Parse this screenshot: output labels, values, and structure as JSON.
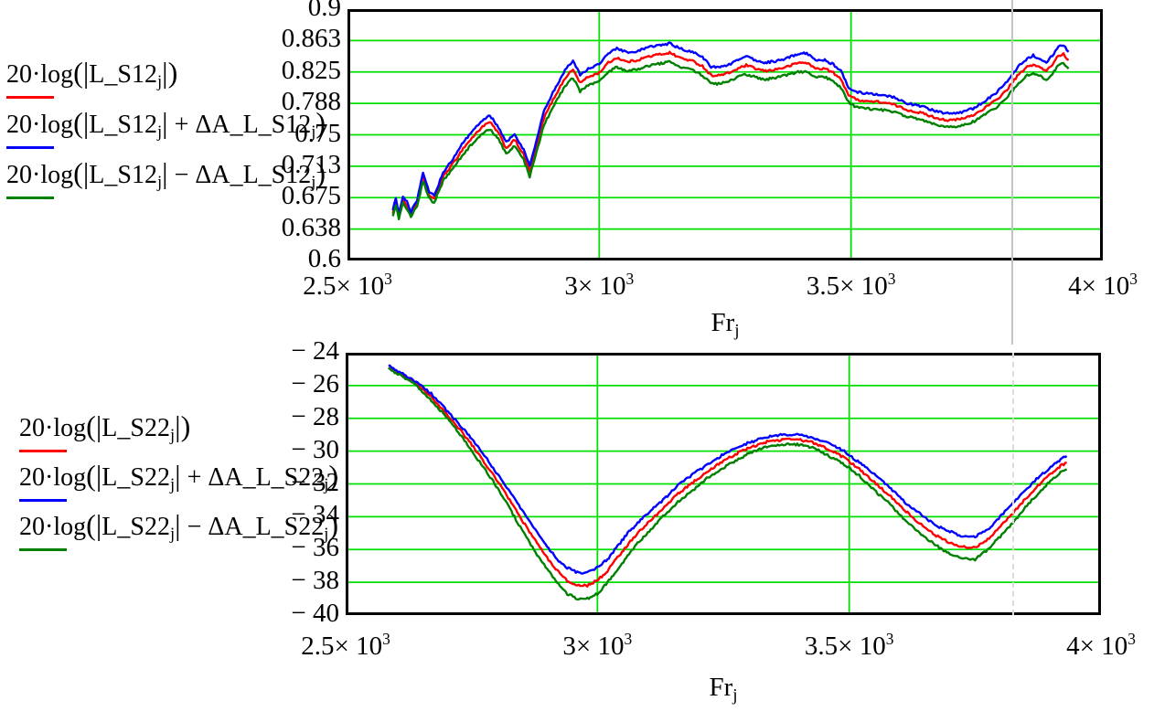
{
  "page": {
    "background": "#ffffff"
  },
  "page_margin_line": {
    "color": "#c3c3c3",
    "dashed_color": "#dcdcdc"
  },
  "colors": {
    "trace_red": "#ff0000",
    "trace_blue": "#0000ff",
    "trace_green": "#008000",
    "grid": "#00e000",
    "frame": "#000000"
  },
  "legends": [
    {
      "id": "s12-legend",
      "entries": [
        {
          "color": "#ff0000",
          "segments": [
            {
              "t": "20·log"
            },
            {
              "t": "(",
              "big": true
            },
            {
              "t": "|",
              "big": true
            },
            {
              "t": "L_S12"
            },
            {
              "t": "j",
              "sub": true
            },
            {
              "t": "|",
              "big": true
            },
            {
              "t": ")",
              "big": true
            }
          ]
        },
        {
          "color": "#0000ff",
          "segments": [
            {
              "t": "20·log"
            },
            {
              "t": "(",
              "big": true
            },
            {
              "t": "|",
              "big": true
            },
            {
              "t": "L_S12"
            },
            {
              "t": "j",
              "sub": true
            },
            {
              "t": "|",
              "big": true
            },
            {
              "t": " + ΔA_L_S12"
            },
            {
              "t": "j",
              "sub": true
            },
            {
              "t": ")",
              "big": true
            }
          ]
        },
        {
          "color": "#008000",
          "segments": [
            {
              "t": "20·log"
            },
            {
              "t": "(",
              "big": true
            },
            {
              "t": "|",
              "big": true
            },
            {
              "t": "L_S12"
            },
            {
              "t": "j",
              "sub": true
            },
            {
              "t": "|",
              "big": true
            },
            {
              "t": " − ΔA_L_S12"
            },
            {
              "t": "j",
              "sub": true
            },
            {
              "t": ")",
              "big": true
            }
          ]
        }
      ]
    },
    {
      "id": "s22-legend",
      "entries": [
        {
          "color": "#ff0000",
          "segments": [
            {
              "t": "20·log"
            },
            {
              "t": "(",
              "big": true
            },
            {
              "t": "|",
              "big": true
            },
            {
              "t": "L_S22"
            },
            {
              "t": "j",
              "sub": true
            },
            {
              "t": "|",
              "big": true
            },
            {
              "t": ")",
              "big": true
            }
          ]
        },
        {
          "color": "#0000ff",
          "segments": [
            {
              "t": "20·log"
            },
            {
              "t": "(",
              "big": true
            },
            {
              "t": "|",
              "big": true
            },
            {
              "t": "L_S22"
            },
            {
              "t": "j",
              "sub": true
            },
            {
              "t": "|",
              "big": true
            },
            {
              "t": " + ΔA_L_S22"
            },
            {
              "t": "j",
              "sub": true
            },
            {
              "t": ")",
              "big": true
            }
          ]
        },
        {
          "color": "#008000",
          "segments": [
            {
              "t": "20·log"
            },
            {
              "t": "(",
              "big": true
            },
            {
              "t": "|",
              "big": true
            },
            {
              "t": "L_S22"
            },
            {
              "t": "j",
              "sub": true
            },
            {
              "t": "|",
              "big": true
            },
            {
              "t": " − ΔA_L_S22"
            },
            {
              "t": "j",
              "sub": true
            },
            {
              "t": ")",
              "big": true
            }
          ]
        }
      ]
    }
  ],
  "chart_data": [
    {
      "id": "S12",
      "type": "line",
      "grid": true,
      "grid_color": "#00e000",
      "frame_color": "#000000",
      "legend_position": "left",
      "xlabel_segments": [
        {
          "t": "Fr"
        },
        {
          "t": "j",
          "sub": true
        }
      ],
      "x_range": [
        2500,
        4000
      ],
      "y_range": [
        0.6,
        0.9
      ],
      "noise": 0.0013,
      "x_ticks": [
        {
          "value": 2500,
          "segments": [
            {
              "t": "2.5× 10"
            },
            {
              "t": "3",
              "sup": true
            }
          ]
        },
        {
          "value": 3000,
          "segments": [
            {
              "t": "3× 10"
            },
            {
              "t": "3",
              "sup": true
            }
          ]
        },
        {
          "value": 3500,
          "segments": [
            {
              "t": "3.5× 10"
            },
            {
              "t": "3",
              "sup": true
            }
          ]
        },
        {
          "value": 4000,
          "segments": [
            {
              "t": "4× 10"
            },
            {
              "t": "3",
              "sup": true
            }
          ]
        }
      ],
      "y_ticks": [
        {
          "value": 0.9,
          "label": "0.9"
        },
        {
          "value": 0.8625,
          "label": "0.863"
        },
        {
          "value": 0.825,
          "label": "0.825"
        },
        {
          "value": 0.7875,
          "label": "0.788"
        },
        {
          "value": 0.75,
          "label": "0.75"
        },
        {
          "value": 0.7125,
          "label": "0.713"
        },
        {
          "value": 0.675,
          "label": "0.675"
        },
        {
          "value": 0.6375,
          "label": "0.638"
        },
        {
          "value": 0.6,
          "label": "0.6"
        }
      ],
      "x": [
        2590,
        2596,
        2602,
        2610,
        2618,
        2626,
        2638,
        2650,
        2662,
        2672,
        2690,
        2710,
        2730,
        2750,
        2768,
        2783,
        2800,
        2815,
        2832,
        2850,
        2862,
        2875,
        2890,
        2905,
        2920,
        2935,
        2948,
        2962,
        2978,
        3000,
        3018,
        3035,
        3055,
        3075,
        3095,
        3120,
        3140,
        3160,
        3185,
        3205,
        3222,
        3240,
        3258,
        3276,
        3292,
        3310,
        3330,
        3350,
        3372,
        3395,
        3412,
        3430,
        3448,
        3465,
        3480,
        3495,
        3510,
        3535,
        3560,
        3585,
        3610,
        3640,
        3670,
        3695,
        3720,
        3745,
        3770,
        3790,
        3810,
        3830,
        3850,
        3862,
        3876,
        3888,
        3900,
        3912,
        3922,
        3932
      ],
      "series": [
        {
          "name": "20·log(|L_S12j|)",
          "color": "#ff0000",
          "values": [
            0.657,
            0.67,
            0.653,
            0.673,
            0.666,
            0.655,
            0.668,
            0.7,
            0.678,
            0.673,
            0.7,
            0.716,
            0.734,
            0.748,
            0.76,
            0.765,
            0.752,
            0.734,
            0.744,
            0.726,
            0.706,
            0.735,
            0.77,
            0.788,
            0.805,
            0.82,
            0.828,
            0.812,
            0.819,
            0.824,
            0.836,
            0.842,
            0.837,
            0.839,
            0.843,
            0.846,
            0.848,
            0.842,
            0.838,
            0.832,
            0.821,
            0.821,
            0.824,
            0.829,
            0.833,
            0.829,
            0.826,
            0.828,
            0.831,
            0.836,
            0.836,
            0.829,
            0.829,
            0.824,
            0.816,
            0.798,
            0.792,
            0.79,
            0.789,
            0.786,
            0.78,
            0.776,
            0.77,
            0.767,
            0.769,
            0.774,
            0.784,
            0.792,
            0.804,
            0.82,
            0.831,
            0.834,
            0.83,
            0.826,
            0.834,
            0.845,
            0.846,
            0.839
          ]
        },
        {
          "name": "20·log(|L_S12j| + ΔA_L_S12j)",
          "color": "#0000ff",
          "values": [
            0.661,
            0.674,
            0.656,
            0.677,
            0.67,
            0.658,
            0.672,
            0.705,
            0.682,
            0.677,
            0.705,
            0.722,
            0.741,
            0.755,
            0.768,
            0.773,
            0.759,
            0.741,
            0.751,
            0.732,
            0.712,
            0.742,
            0.778,
            0.797,
            0.814,
            0.83,
            0.838,
            0.822,
            0.829,
            0.834,
            0.847,
            0.853,
            0.848,
            0.85,
            0.854,
            0.857,
            0.859,
            0.853,
            0.849,
            0.843,
            0.831,
            0.831,
            0.834,
            0.839,
            0.844,
            0.839,
            0.836,
            0.838,
            0.841,
            0.847,
            0.847,
            0.839,
            0.839,
            0.834,
            0.826,
            0.807,
            0.801,
            0.799,
            0.798,
            0.795,
            0.788,
            0.784,
            0.778,
            0.775,
            0.777,
            0.782,
            0.792,
            0.801,
            0.813,
            0.83,
            0.841,
            0.845,
            0.84,
            0.836,
            0.845,
            0.856,
            0.857,
            0.849
          ]
        },
        {
          "name": "20·log(|L_S12j| − ΔA_L_S12j)",
          "color": "#008000",
          "values": [
            0.654,
            0.666,
            0.65,
            0.669,
            0.662,
            0.652,
            0.664,
            0.695,
            0.674,
            0.669,
            0.695,
            0.71,
            0.727,
            0.741,
            0.752,
            0.757,
            0.745,
            0.727,
            0.737,
            0.72,
            0.7,
            0.728,
            0.762,
            0.779,
            0.796,
            0.81,
            0.818,
            0.802,
            0.809,
            0.814,
            0.825,
            0.831,
            0.826,
            0.828,
            0.832,
            0.835,
            0.837,
            0.831,
            0.827,
            0.821,
            0.811,
            0.811,
            0.814,
            0.819,
            0.822,
            0.819,
            0.816,
            0.818,
            0.821,
            0.825,
            0.825,
            0.819,
            0.819,
            0.814,
            0.806,
            0.789,
            0.783,
            0.781,
            0.78,
            0.777,
            0.772,
            0.768,
            0.762,
            0.759,
            0.761,
            0.766,
            0.776,
            0.783,
            0.795,
            0.81,
            0.821,
            0.823,
            0.82,
            0.816,
            0.823,
            0.834,
            0.835,
            0.829
          ]
        }
      ]
    },
    {
      "id": "S22",
      "type": "line",
      "grid": true,
      "grid_color": "#00e000",
      "frame_color": "#000000",
      "legend_position": "left",
      "xlabel_segments": [
        {
          "t": "Fr"
        },
        {
          "t": "j",
          "sub": true
        }
      ],
      "x_range": [
        2500,
        4000
      ],
      "y_range": [
        -40,
        -24
      ],
      "noise": 0.07,
      "x_ticks": [
        {
          "value": 2500,
          "segments": [
            {
              "t": "2.5× 10"
            },
            {
              "t": "3",
              "sup": true
            }
          ]
        },
        {
          "value": 3000,
          "segments": [
            {
              "t": "3× 10"
            },
            {
              "t": "3",
              "sup": true
            }
          ]
        },
        {
          "value": 3500,
          "segments": [
            {
              "t": "3.5× 10"
            },
            {
              "t": "3",
              "sup": true
            }
          ]
        },
        {
          "value": 4000,
          "segments": [
            {
              "t": "4× 10"
            },
            {
              "t": "3",
              "sup": true
            }
          ]
        }
      ],
      "y_ticks": [
        {
          "value": -24,
          "label": "− 24"
        },
        {
          "value": -26,
          "label": "− 26"
        },
        {
          "value": -28,
          "label": "− 28"
        },
        {
          "value": -30,
          "label": "− 30"
        },
        {
          "value": -32,
          "label": "− 32"
        },
        {
          "value": -34,
          "label": "− 34"
        },
        {
          "value": -36,
          "label": "− 36"
        },
        {
          "value": -38,
          "label": "− 38"
        },
        {
          "value": -40,
          "label": "− 40"
        }
      ],
      "x": [
        2585,
        2610,
        2640,
        2670,
        2700,
        2730,
        2760,
        2790,
        2820,
        2850,
        2880,
        2900,
        2920,
        2940,
        2960,
        2980,
        3000,
        3020,
        3040,
        3060,
        3080,
        3100,
        3130,
        3160,
        3190,
        3220,
        3250,
        3280,
        3310,
        3340,
        3370,
        3400,
        3430,
        3460,
        3490,
        3520,
        3550,
        3580,
        3610,
        3640,
        3670,
        3700,
        3725,
        3750,
        3775,
        3800,
        3825,
        3850,
        3875,
        3900,
        3920,
        3932
      ],
      "series": [
        {
          "name": "20·log(|L_S22j|)",
          "color": "#ff0000",
          "values": [
            -24.9,
            -25.3,
            -25.9,
            -26.7,
            -27.7,
            -28.8,
            -30.0,
            -31.3,
            -32.7,
            -34.2,
            -35.6,
            -36.5,
            -37.3,
            -37.9,
            -38.2,
            -38.2,
            -37.9,
            -37.3,
            -36.5,
            -35.7,
            -35.0,
            -34.4,
            -33.5,
            -32.6,
            -31.9,
            -31.2,
            -30.6,
            -30.1,
            -29.7,
            -29.4,
            -29.3,
            -29.3,
            -29.5,
            -29.9,
            -30.4,
            -31.1,
            -31.9,
            -32.7,
            -33.6,
            -34.4,
            -35.1,
            -35.6,
            -35.85,
            -35.9,
            -35.4,
            -34.6,
            -33.8,
            -32.9,
            -32.1,
            -31.4,
            -30.9,
            -30.7
          ]
        },
        {
          "name": "20·log(|L_S22j| + ΔA_L_S22j)",
          "color": "#0000ff",
          "values": [
            -24.8,
            -25.2,
            -25.8,
            -26.5,
            -27.5,
            -28.5,
            -29.6,
            -30.9,
            -32.2,
            -33.6,
            -34.9,
            -35.8,
            -36.6,
            -37.1,
            -37.4,
            -37.4,
            -37.1,
            -36.6,
            -35.8,
            -35.0,
            -34.4,
            -33.8,
            -33.0,
            -32.1,
            -31.4,
            -30.8,
            -30.2,
            -29.7,
            -29.4,
            -29.1,
            -29.0,
            -29.0,
            -29.2,
            -29.5,
            -30.0,
            -30.7,
            -31.4,
            -32.2,
            -33.1,
            -33.8,
            -34.5,
            -34.9,
            -35.2,
            -35.2,
            -34.8,
            -34.0,
            -33.2,
            -32.4,
            -31.6,
            -31.0,
            -30.5,
            -30.3
          ]
        },
        {
          "name": "20·log(|L_S22j| − ΔA_L_S22j)",
          "color": "#008000",
          "values": [
            -25.0,
            -25.4,
            -26.0,
            -26.9,
            -27.9,
            -29.1,
            -30.4,
            -31.7,
            -33.2,
            -34.8,
            -36.3,
            -37.2,
            -38.0,
            -38.7,
            -39.0,
            -39.0,
            -38.7,
            -38.0,
            -37.2,
            -36.4,
            -35.6,
            -35.0,
            -34.0,
            -33.1,
            -32.4,
            -31.6,
            -31.0,
            -30.5,
            -30.0,
            -29.7,
            -29.6,
            -29.6,
            -29.8,
            -30.3,
            -30.8,
            -31.5,
            -32.4,
            -33.2,
            -34.2,
            -35.0,
            -35.7,
            -36.3,
            -36.5,
            -36.6,
            -36.0,
            -35.2,
            -34.4,
            -33.4,
            -32.6,
            -31.8,
            -31.3,
            -31.1
          ]
        }
      ]
    }
  ]
}
